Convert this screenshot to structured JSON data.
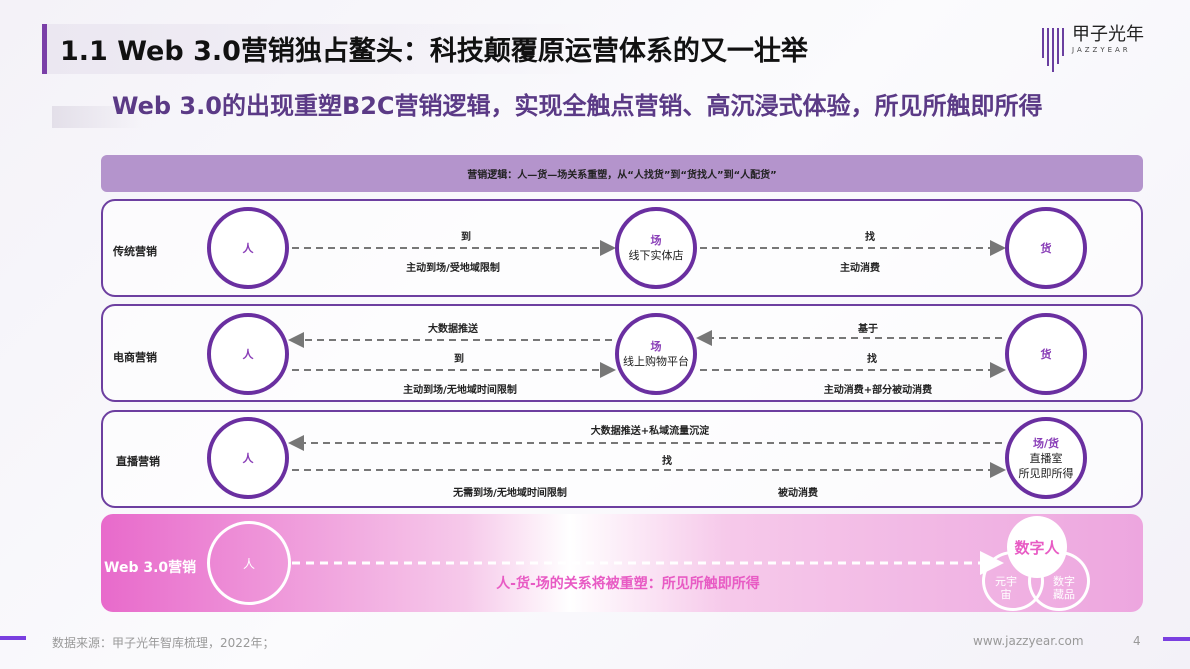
{
  "header": {
    "title": "1.1 Web 3.0营销独占鳌头：科技颠覆原运营体系的又一壮举",
    "subtitle": "Web 3.0的出现重塑B2C营销逻辑，实现全触点营销、高沉浸式体验，所见所触即所得"
  },
  "logo": {
    "name": "甲子光年",
    "sub": "JAZZYEAR"
  },
  "banner": "营销逻辑：人—货—场关系重塑，从“人找货”到“货找人”到“人配货”",
  "rows": [
    {
      "label": "传统营销",
      "left": "人",
      "mid_key": "场",
      "mid_sub": "线下实体店",
      "right": "货",
      "t1": "到",
      "t2": "主动到场/受地域限制",
      "t3": "找",
      "t4": "主动消费"
    },
    {
      "label": "电商营销",
      "left": "人",
      "mid_key": "场",
      "mid_sub": "线上购物平台",
      "right": "货",
      "t1": "大数据推送",
      "t2": "到",
      "t3": "主动到场/无地域时间限制",
      "t4": "基于",
      "t5": "找",
      "t6": "主动消费+部分被动消费"
    },
    {
      "label": "直播营销",
      "left": "人",
      "right_key": "场/货",
      "right_sub1": "直播室",
      "right_sub2": "所见即所得",
      "t1": "大数据推送+私域流量沉淀",
      "t2": "找",
      "t3": "无需到场/无地域时间限制",
      "t4": "被动消费"
    }
  ],
  "web3": {
    "label": "Web 3.0营销",
    "left": "人",
    "center": "人-货-场的关系将被重塑：所见所触即所得",
    "digital_human": "数字人",
    "metaverse": "元宇宙",
    "nft": "数字藏品"
  },
  "footer": {
    "source": "数据来源：甲子光年智库梳理，2022年；",
    "url": "www.jazzyear.com",
    "page": "4"
  },
  "colors": {
    "accent": "#6d3fa0",
    "banner": "#b494cc",
    "pink": "#e86acb"
  }
}
